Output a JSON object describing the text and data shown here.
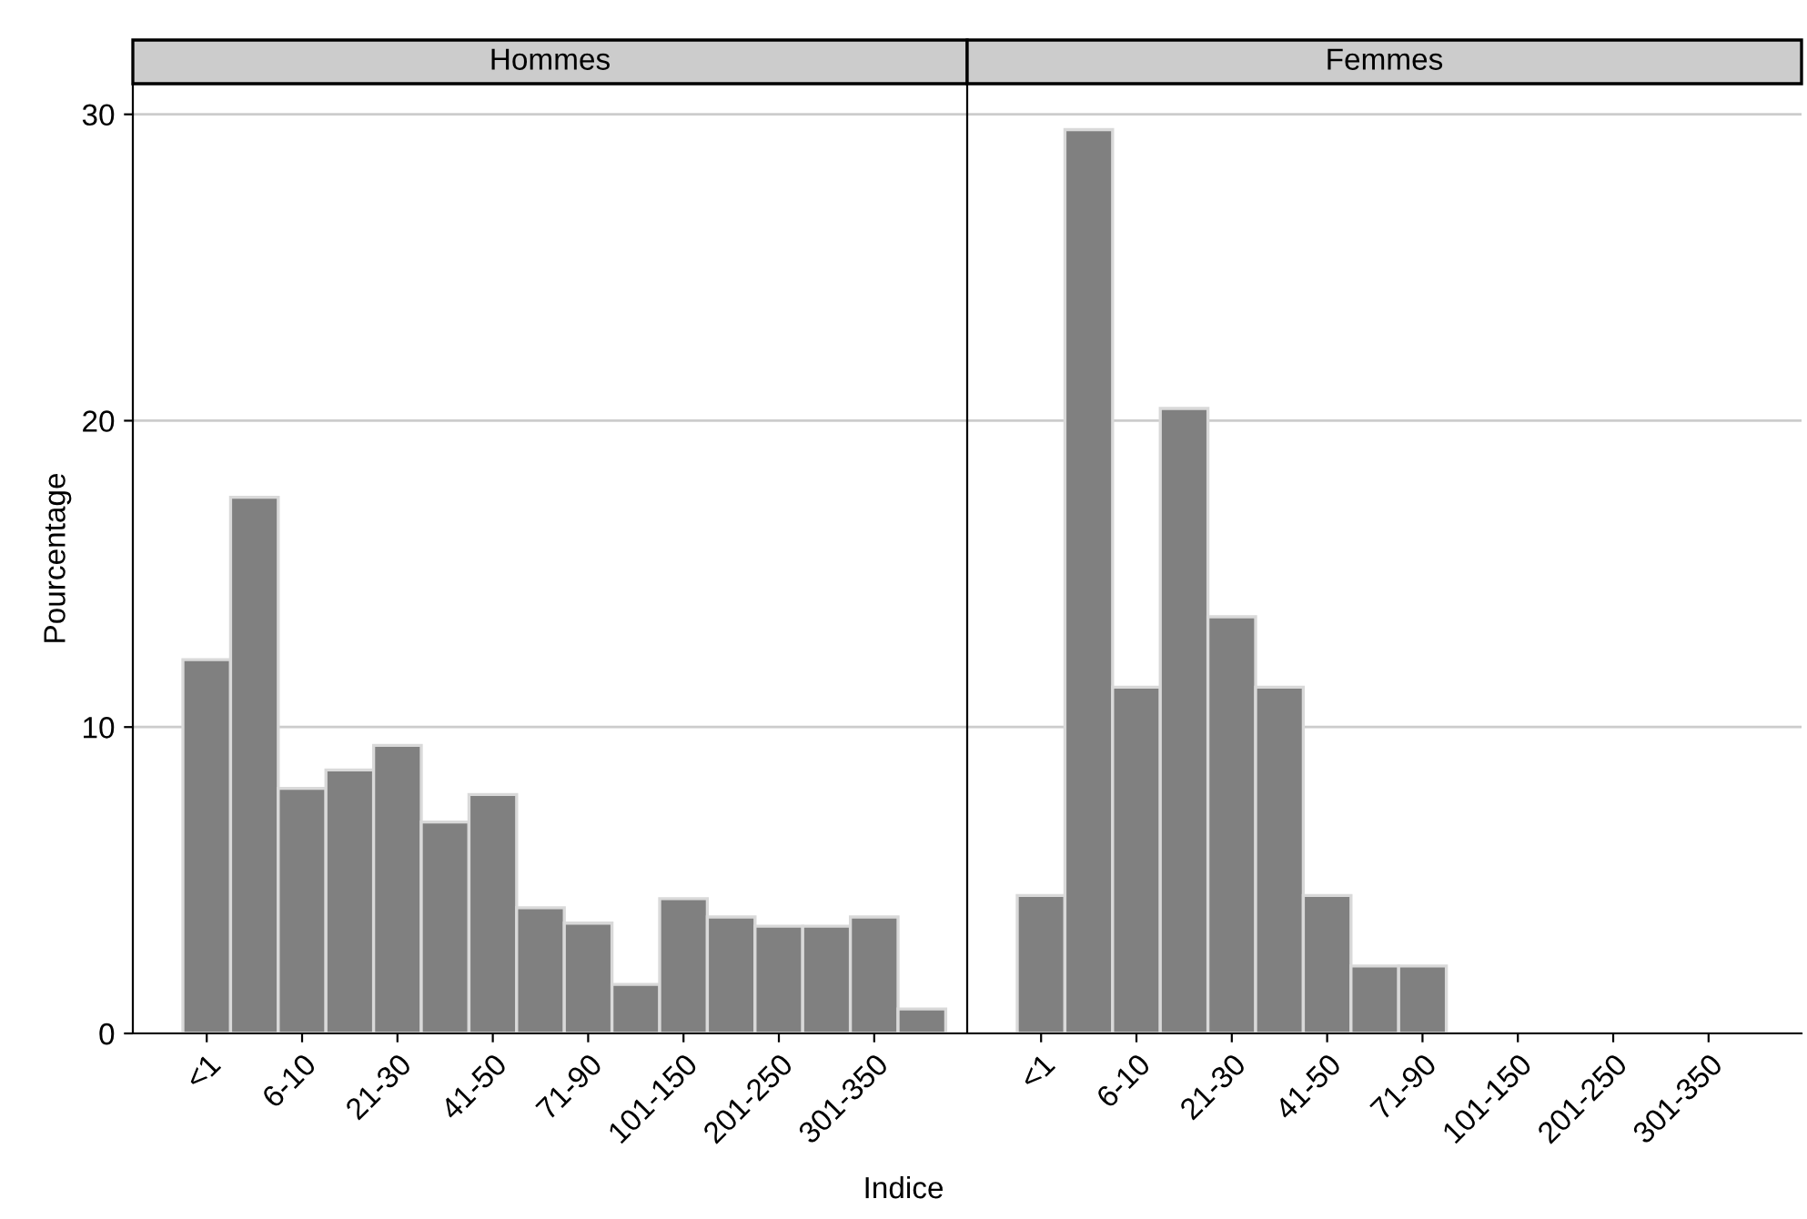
{
  "chart_data": [
    {
      "type": "bar",
      "title": "Hommes",
      "ylabel": "Pourcentage",
      "xlabel": "Indice",
      "categories": [
        "<1",
        null,
        "6-10",
        null,
        "21-30",
        null,
        "41-50",
        null,
        "71-90",
        null,
        "101-150",
        null,
        "201-250",
        null,
        "301-350",
        null
      ],
      "values": [
        12.2,
        17.5,
        8.0,
        8.6,
        9.4,
        6.9,
        7.8,
        4.1,
        3.6,
        1.6,
        4.4,
        3.8,
        3.5,
        3.5,
        3.8,
        0.8
      ],
      "color": "#808080",
      "ylim": [
        0,
        31
      ],
      "yticks": [
        0,
        10,
        20,
        30
      ],
      "grid": "y"
    },
    {
      "type": "bar",
      "title": "Femmes",
      "categories": [
        "<1",
        null,
        "6-10",
        null,
        "21-30",
        null,
        "41-50",
        null,
        "71-90",
        null,
        "101-150",
        null,
        "201-250",
        null,
        "301-350",
        null
      ],
      "values": [
        4.5,
        29.5,
        11.3,
        20.4,
        13.6,
        11.3,
        4.5,
        2.2,
        2.2,
        null,
        null,
        null,
        null,
        null,
        null,
        null
      ],
      "color": "#808080",
      "ylim": [
        0,
        31
      ],
      "yticks": [
        0,
        10,
        20,
        30
      ],
      "grid": "y",
      "tick_labels": "x"
    }
  ]
}
